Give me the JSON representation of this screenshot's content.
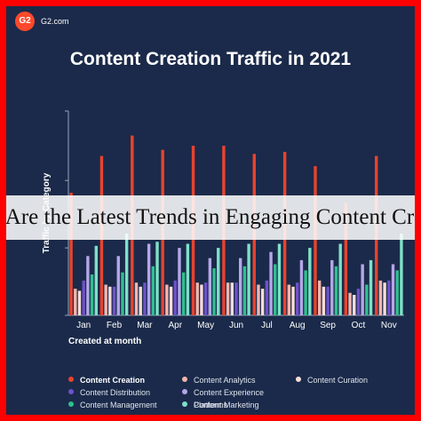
{
  "brand": {
    "logo_text": "G2",
    "site": "G2.com"
  },
  "title": "Content Creation Traffic in 2021",
  "overlay_banner": "What Are the Latest Trends in Engaging Content Creation",
  "colors": {
    "background": "#1b2a4a",
    "frame": "#ff0000",
    "axis": "#9aa4b8"
  },
  "chart_data": {
    "type": "bar",
    "title": "Content Creation Traffic in 2021",
    "xlabel": "Created at month",
    "ylabel": "Traffic by Category",
    "categories": [
      "Jan",
      "Feb",
      "Mar",
      "Apr",
      "May",
      "Jun",
      "Jul",
      "Aug",
      "Sep",
      "Oct",
      "Nov"
    ],
    "ylim": [
      0,
      100
    ],
    "grid": false,
    "legend_position": "bottom",
    "series": [
      {
        "name": "Content Creation",
        "color": "#e8432e",
        "bold": true,
        "values": [
          60,
          78,
          88,
          81,
          83,
          83,
          79,
          80,
          73,
          55,
          78
        ]
      },
      {
        "name": "Content Analytics",
        "color": "#f2b6ae",
        "values": [
          13,
          15,
          16,
          15,
          16,
          16,
          15,
          15,
          17,
          11,
          17
        ]
      },
      {
        "name": "Content Curation",
        "color": "#f7ddd8",
        "values": [
          12,
          14,
          14,
          14,
          15,
          16,
          13,
          14,
          14,
          10,
          16
        ]
      },
      {
        "name": "Content Distribution",
        "color": "#6d52c8",
        "values": [
          17,
          14,
          16,
          17,
          16,
          16,
          17,
          16,
          14,
          13,
          17
        ]
      },
      {
        "name": "Content Experience Platforms",
        "color": "#b5a7e8",
        "values": [
          29,
          29,
          35,
          33,
          28,
          28,
          31,
          27,
          27,
          25,
          25
        ]
      },
      {
        "name": "Content Management",
        "color": "#2fbf8e",
        "values": [
          20,
          21,
          24,
          21,
          23,
          24,
          25,
          22,
          24,
          15,
          22
        ]
      },
      {
        "name": "Content Marketing",
        "color": "#7fe0c8",
        "values": [
          34,
          40,
          36,
          35,
          33,
          35,
          35,
          33,
          35,
          27,
          40
        ]
      }
    ]
  }
}
